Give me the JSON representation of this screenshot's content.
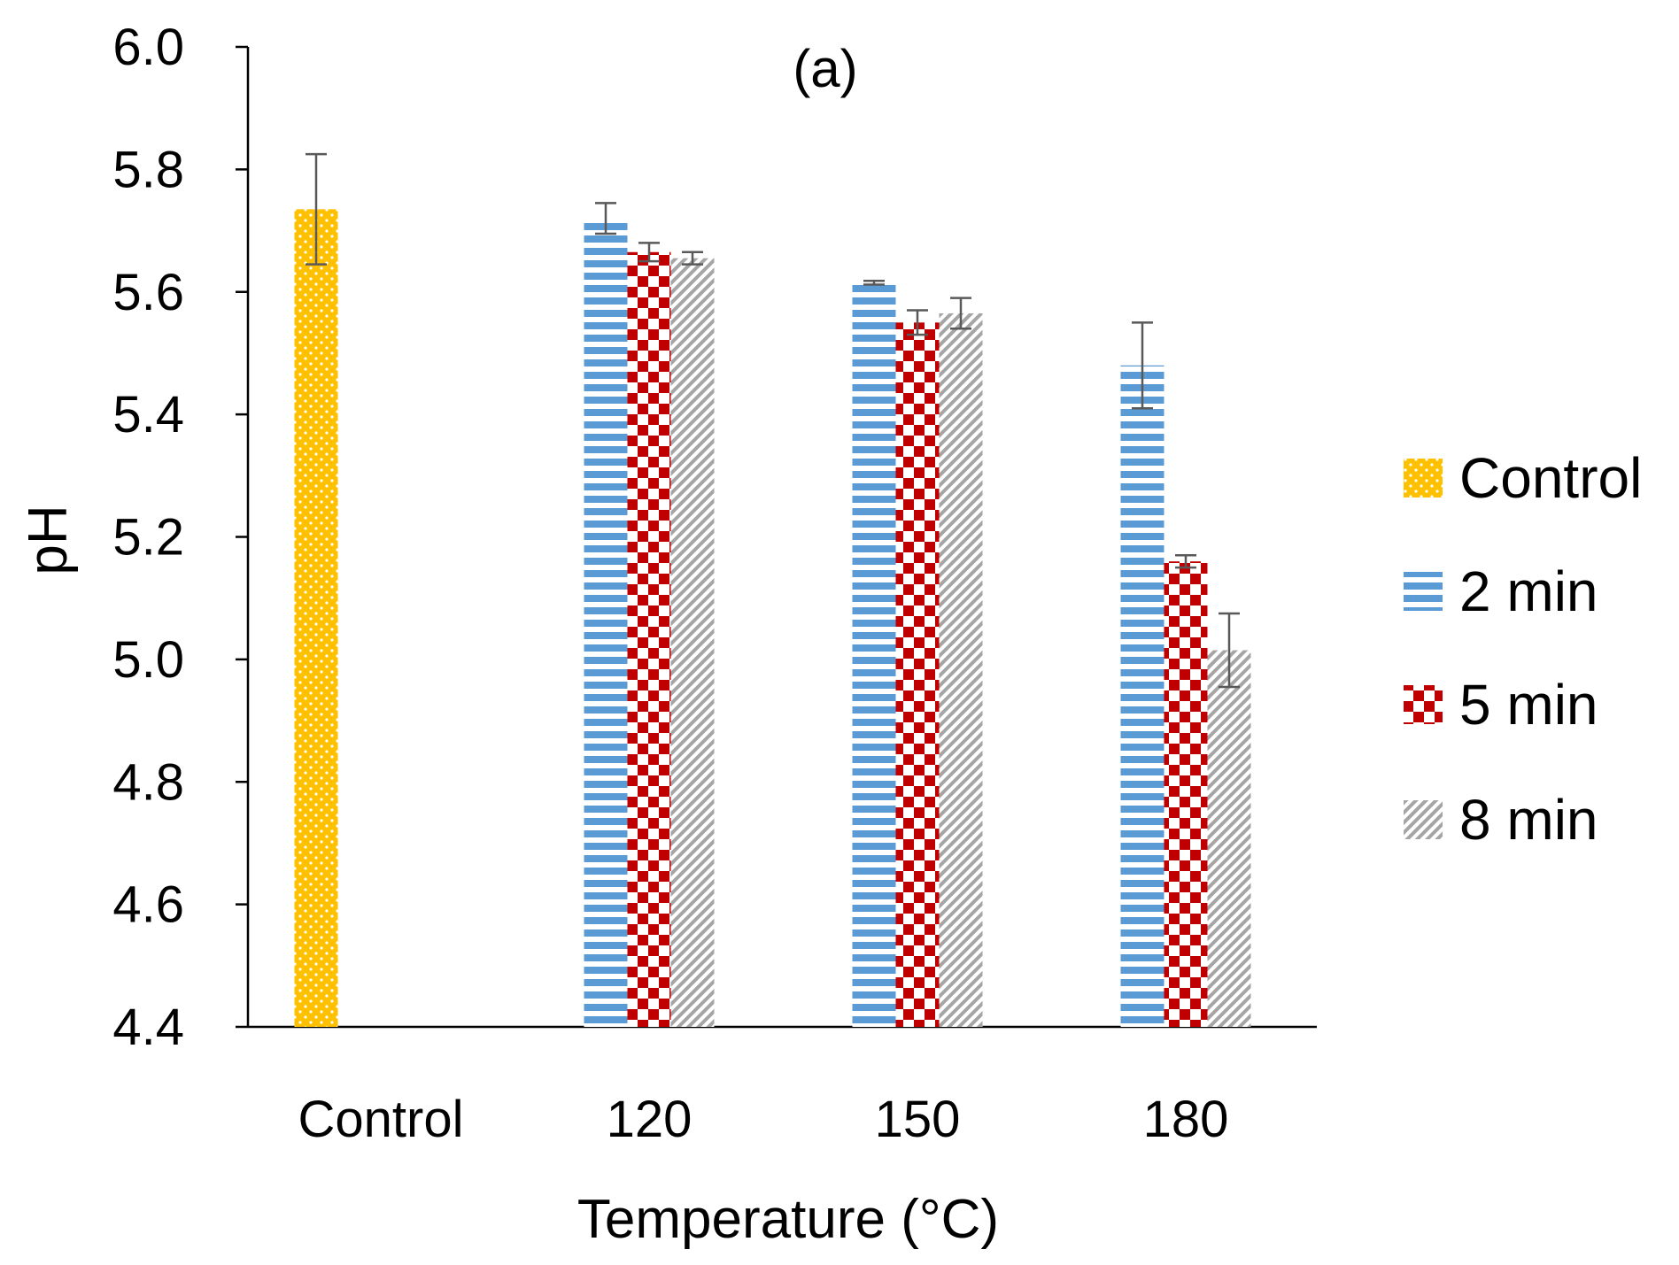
{
  "chart_data": {
    "type": "bar",
    "title": "(a)",
    "xlabel": "Temperature (°C)",
    "ylabel": "pH",
    "ylim": [
      4.4,
      6.0
    ],
    "yticks": [
      "4.4",
      "4.6",
      "4.8",
      "5.0",
      "5.2",
      "5.4",
      "5.6",
      "5.8",
      "6.0"
    ],
    "categories": [
      "Control",
      "120",
      "150",
      "180"
    ],
    "series": [
      {
        "name": "Control",
        "color": "#FFC000",
        "pattern": "dots",
        "values": [
          5.735,
          null,
          null,
          null
        ],
        "errors": [
          0.09,
          null,
          null,
          null
        ]
      },
      {
        "name": "2 min",
        "color": "#5B9BD5",
        "pattern": "horizontal-stripes",
        "values": [
          null,
          5.72,
          5.615,
          5.48
        ],
        "errors": [
          null,
          0.025,
          0.003,
          0.07
        ]
      },
      {
        "name": "5 min",
        "color": "#C00000",
        "pattern": "checkerboard",
        "values": [
          null,
          5.665,
          5.55,
          5.16
        ],
        "errors": [
          null,
          0.015,
          0.02,
          0.01
        ]
      },
      {
        "name": "8 min",
        "color": "#A5A5A5",
        "pattern": "diagonal-stripes",
        "values": [
          null,
          5.655,
          5.565,
          5.015
        ],
        "errors": [
          null,
          0.01,
          0.025,
          0.06
        ]
      }
    ],
    "legend": "right"
  }
}
